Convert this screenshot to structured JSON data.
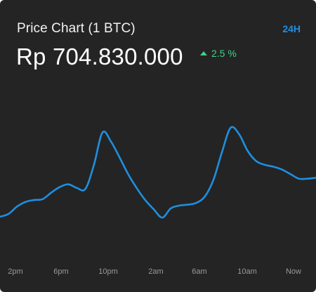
{
  "header": {
    "title": "Price Chart (1 BTC)",
    "range_label": "24H",
    "price": "Rp 704.830.000",
    "change": "2.5 %",
    "change_icon": "triangle-up-icon"
  },
  "colors": {
    "background": "#242424",
    "line": "#1e8fe0",
    "accent": "#1e8fe0",
    "positive": "#3cd58a",
    "tick_text": "#9a9a9a"
  },
  "chart_data": {
    "type": "line",
    "title": "",
    "xlabel": "",
    "ylabel": "",
    "x_ticks": [
      "2pm",
      "6pm",
      "10pm",
      "2am",
      "6am",
      "10am",
      "Now"
    ],
    "grid": false,
    "legend": "none",
    "series": [
      {
        "values": [
          0.04,
          0.07,
          0.15,
          0.2,
          0.22,
          0.23,
          0.3,
          0.36,
          0.39,
          0.35,
          0.34,
          0.6,
          0.95,
          0.85,
          0.68,
          0.5,
          0.35,
          0.22,
          0.12,
          0.03,
          0.13,
          0.16,
          0.17,
          0.19,
          0.26,
          0.44,
          0.74,
          1.0,
          0.93,
          0.75,
          0.64,
          0.6,
          0.58,
          0.55,
          0.5,
          0.45,
          0.45,
          0.46
        ]
      }
    ],
    "ylim": [
      0,
      1
    ]
  }
}
